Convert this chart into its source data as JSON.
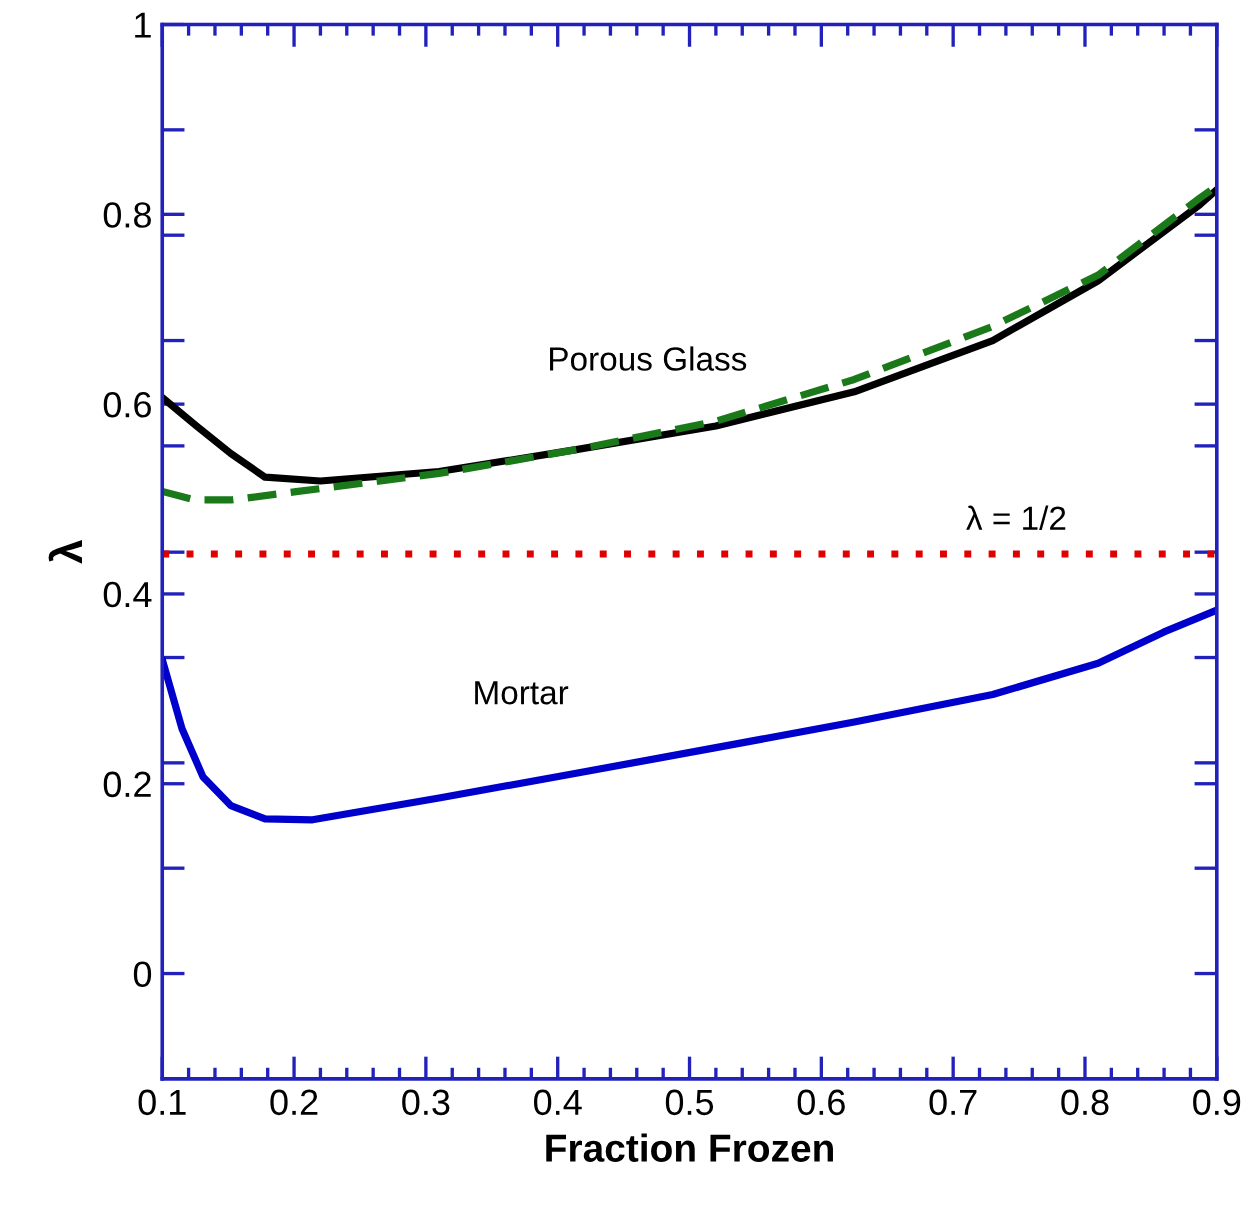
{
  "chart_data": {
    "type": "line",
    "xlabel": "Fraction Frozen",
    "ylabel": "λ",
    "xlim": [
      0.1,
      0.9
    ],
    "ylim": [
      -0.111,
      1
    ],
    "xticks": [
      0.1,
      0.2,
      0.3,
      0.4,
      0.5,
      0.6,
      0.7,
      0.8,
      0.9,
      {
        "value": 0.12,
        "label": null
      },
      {
        "value": 0.14,
        "label": null
      },
      {
        "value": 0.16,
        "label": null
      },
      {
        "value": 0.18,
        "label": null
      },
      {
        "value": 0.22,
        "label": null
      },
      {
        "value": 0.24,
        "label": null
      },
      {
        "value": 0.26,
        "label": null
      },
      {
        "value": 0.28,
        "label": null
      },
      {
        "value": 0.32,
        "label": null
      },
      {
        "value": 0.34,
        "label": null
      },
      {
        "value": 0.36,
        "label": null
      },
      {
        "value": 0.38,
        "label": null
      },
      {
        "value": 0.42,
        "label": null
      },
      {
        "value": 0.44,
        "label": null
      },
      {
        "value": 0.46,
        "label": null
      },
      {
        "value": 0.48,
        "label": null
      },
      {
        "value": 0.52,
        "label": null
      },
      {
        "value": 0.54,
        "label": null
      },
      {
        "value": 0.56,
        "label": null
      },
      {
        "value": 0.58,
        "label": null
      },
      {
        "value": 0.62,
        "label": null
      },
      {
        "value": 0.64,
        "label": null
      },
      {
        "value": 0.66,
        "label": null
      },
      {
        "value": 0.68,
        "label": null
      },
      {
        "value": 0.72,
        "label": null
      },
      {
        "value": 0.74,
        "label": null
      },
      {
        "value": 0.76,
        "label": null
      },
      {
        "value": 0.78,
        "label": null
      },
      {
        "value": 0.82,
        "label": null
      },
      {
        "value": 0.84,
        "label": null
      },
      {
        "value": 0.86,
        "label": null
      },
      {
        "value": 0.88,
        "label": null
      }
    ],
    "yticks": [
      0,
      0.2,
      0.4,
      0.6,
      0.8,
      1,
      {
        "value": 0.889,
        "label": null
      },
      {
        "value": 0.778,
        "label": null
      },
      {
        "value": 0.667,
        "label": null
      },
      {
        "value": 0.556,
        "label": null
      },
      {
        "value": 0.444,
        "label": null
      },
      {
        "value": 0.333,
        "label": null
      },
      {
        "value": 0.222,
        "label": null
      },
      {
        "value": 0.111,
        "label": null
      }
    ],
    "grid": false,
    "legend": false,
    "series": [
      {
        "color": "#000000",
        "line_style": "solid",
        "x": [
          0.1,
          0.126,
          0.152,
          0.178,
          0.22,
          0.31,
          0.414,
          0.52,
          0.625,
          0.73,
          0.81,
          0.887,
          0.9
        ],
        "values": [
          0.607,
          0.577,
          0.548,
          0.523,
          0.519,
          0.529,
          0.552,
          0.577,
          0.613,
          0.667,
          0.73,
          0.81,
          0.826
        ]
      },
      {
        "color": "#1a7a1a",
        "line_style": "dashed",
        "x": [
          0.1,
          0.125,
          0.152,
          0.203,
          0.31,
          0.414,
          0.52,
          0.625,
          0.73,
          0.81,
          0.887,
          0.9
        ],
        "values": [
          0.508,
          0.499,
          0.499,
          0.508,
          0.527,
          0.552,
          0.582,
          0.626,
          0.682,
          0.736,
          0.817,
          0.83
        ]
      },
      {
        "name": "Mortar",
        "color": "#0000cc",
        "line_style": "solid",
        "x": [
          0.1,
          0.115,
          0.131,
          0.152,
          0.178,
          0.214,
          0.31,
          0.414,
          0.52,
          0.625,
          0.73,
          0.81,
          0.86,
          0.9
        ],
        "values": [
          0.331,
          0.258,
          0.207,
          0.177,
          0.163,
          0.162,
          0.185,
          0.211,
          0.238,
          0.265,
          0.294,
          0.327,
          0.36,
          0.383
        ]
      }
    ],
    "ref_lines": [
      {
        "axis": "y",
        "value": 0.442,
        "color": "#e00000",
        "line_style": "dotted"
      }
    ],
    "annotations": [
      "Porous Glass",
      "λ = 1/2"
    ]
  }
}
